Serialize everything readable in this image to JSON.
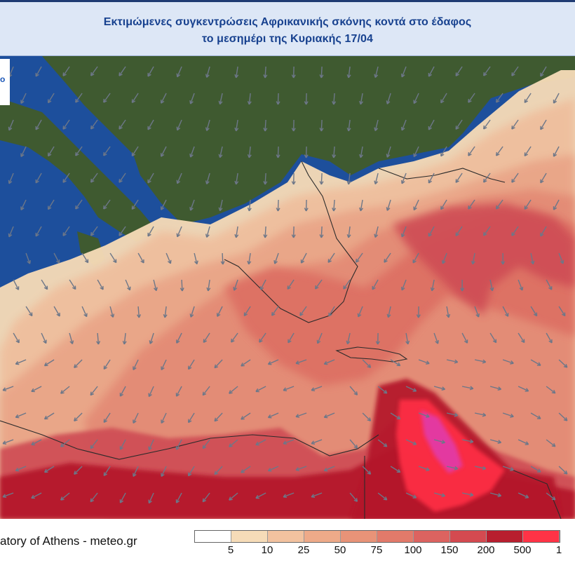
{
  "header": {
    "title_line1": "Εκτιμώμενες συγκεντρώσεις Αφρικανικής σκόνης κοντά στο έδαφος",
    "title_line2": "το μεσημέρι της Κυριακής 17/04"
  },
  "logo": {
    "glyph": "o"
  },
  "footer": {
    "credit": "atory of Athens - meteo.gr"
  },
  "legend": {
    "labels": [
      "5",
      "10",
      "25",
      "50",
      "75",
      "100",
      "150",
      "200",
      "500",
      "1"
    ],
    "colors": [
      "#ffffff",
      "#f6dcb8",
      "#f2c29f",
      "#eeaa89",
      "#e89378",
      "#e27a6a",
      "#dc6360",
      "#d44a50",
      "#b81e2e",
      "#ff3346"
    ]
  },
  "map": {
    "sea_color": "#1d4f9c",
    "land_color": "#3f5a30",
    "dust_palette": [
      "#f3d9b6",
      "#efbf9e",
      "#e9a487",
      "#e38a75",
      "#dd6f64",
      "#cf4d54",
      "#b4182a",
      "#ff2f45",
      "#e23aa8"
    ],
    "arrow_color": "#6d7788"
  }
}
